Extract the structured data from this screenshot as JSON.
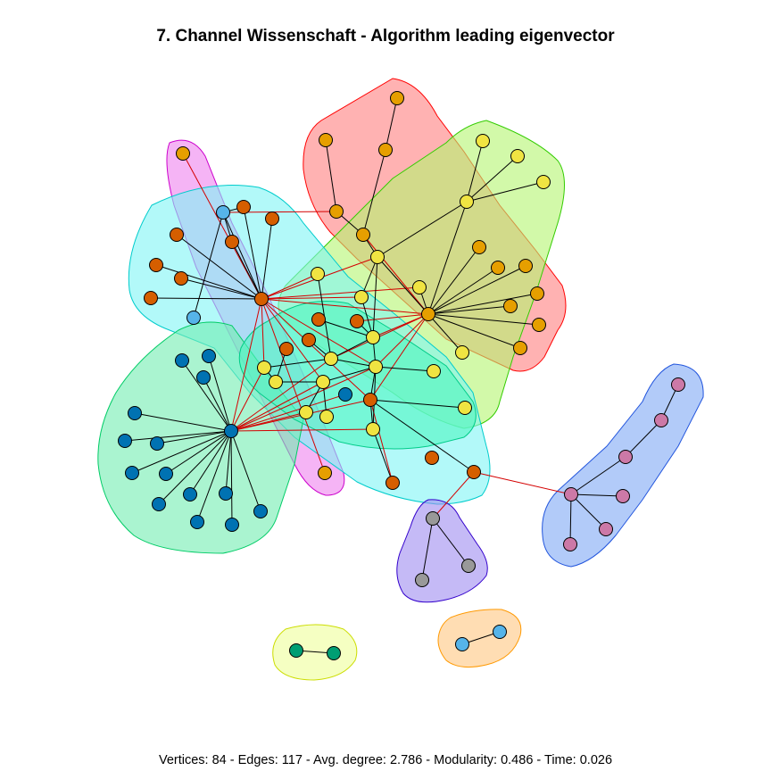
{
  "title": "7. Channel Wissenschaft - Algorithm leading eigenvector",
  "footer": "Vertices: 84 - Edges: 117 - Avg. degree: 2.786 - Modularity: 0.486 - Time: 0.026",
  "stats": {
    "vertices": 84,
    "edges": 117,
    "avg_degree": 2.786,
    "modularity": 0.486,
    "time": 0.026
  },
  "colors": {
    "node_orange": "#E69F00",
    "node_darkorange": "#D55E00",
    "node_yellow": "#F0E442",
    "node_blue": "#0072B2",
    "node_skyblue": "#56B4E9",
    "node_pink": "#CC79A7",
    "node_gray": "#999999",
    "node_green": "#009E73",
    "cross_edge": "#d40000",
    "edge": "#000000"
  },
  "communities": [
    {
      "id": "red",
      "fill": "#ff7f7f",
      "stroke": "#ff0000"
    },
    {
      "id": "lightgreen",
      "fill": "#b4f56f",
      "stroke": "#33cc00"
    },
    {
      "id": "magenta",
      "fill": "#ee82ee",
      "stroke": "#cc00cc"
    },
    {
      "id": "cyan",
      "fill": "#7ff5f5",
      "stroke": "#00cccc"
    },
    {
      "id": "green",
      "fill": "#72ecb0",
      "stroke": "#00cc66"
    },
    {
      "id": "seagreen",
      "fill": "#4ff5c0",
      "stroke": "#00cc88"
    },
    {
      "id": "blue",
      "fill": "#7fa8f5",
      "stroke": "#2255dd"
    },
    {
      "id": "violet",
      "fill": "#9f8cf0",
      "stroke": "#3300cc"
    },
    {
      "id": "yellowgreen",
      "fill": "#eeff99",
      "stroke": "#ccdd00"
    },
    {
      "id": "peach",
      "fill": "#ffc780",
      "stroke": "#ff9900"
    }
  ]
}
